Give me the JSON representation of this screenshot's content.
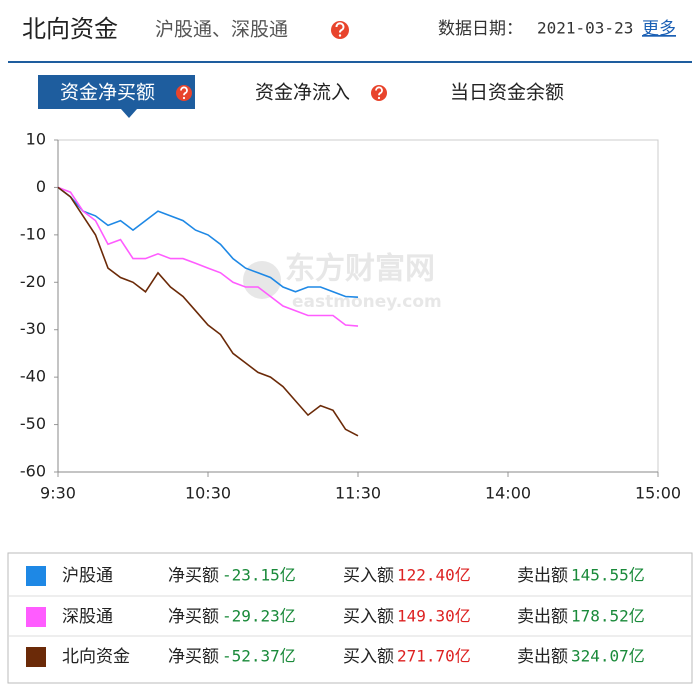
{
  "header": {
    "title": "北向资金",
    "subtitle": "沪股通、深股通",
    "date_label": "数据日期：",
    "date": "2021-03-23",
    "more_link": "更多"
  },
  "tabs": [
    "资金净买额",
    "资金净流入",
    "当日资金余额"
  ],
  "watermark": {
    "name": "东方财富网",
    "domain": "eastmoney.com"
  },
  "chart_data": {
    "type": "line",
    "x": [
      0,
      5,
      10,
      15,
      20,
      25,
      30,
      35,
      40,
      45,
      50,
      55,
      60,
      65,
      70,
      75,
      80,
      85,
      90,
      95,
      100,
      105,
      110,
      115,
      120
    ],
    "xlim": [
      0,
      240
    ],
    "xticks": [
      {
        "value": 0,
        "label": "9:30"
      },
      {
        "value": 60,
        "label": "10:30"
      },
      {
        "value": 120,
        "label": "11:30"
      },
      {
        "value": 180,
        "label": "14:00"
      },
      {
        "value": 240,
        "label": "15:00"
      }
    ],
    "ylim": [
      -60,
      10
    ],
    "yticks": [
      10,
      0,
      -10,
      -20,
      -30,
      -40,
      -50,
      -60
    ],
    "series": [
      {
        "name": "沪股通",
        "color": "#1e88e5",
        "values": [
          0,
          -2,
          -5,
          -6,
          -8,
          -7,
          -9,
          -7,
          -5,
          -6,
          -7,
          -9,
          -10,
          -12,
          -15,
          -17,
          -18,
          -19,
          -21,
          -22,
          -21,
          -21,
          -22,
          -23,
          -23.15
        ]
      },
      {
        "name": "深股通",
        "color": "#ff5cff",
        "values": [
          0,
          -1,
          -5,
          -7,
          -12,
          -11,
          -15,
          -15,
          -14,
          -15,
          -15,
          -16,
          -17,
          -18,
          -20,
          -21,
          -21,
          -23,
          -25,
          -26,
          -27,
          -27,
          -27,
          -29,
          -29.23
        ]
      },
      {
        "name": "北向资金",
        "color": "#6b2a08",
        "values": [
          0,
          -2,
          -6,
          -10,
          -17,
          -19,
          -20,
          -22,
          -18,
          -21,
          -23,
          -26,
          -29,
          -31,
          -35,
          -37,
          -39,
          -40,
          -42,
          -45,
          -48,
          -46,
          -47,
          -51,
          -52.37
        ]
      }
    ]
  },
  "summary": {
    "rows": [
      {
        "net_label": "净买额",
        "net": "-23.15亿",
        "buy_label": "买入额",
        "buy": "122.40亿",
        "sell_label": "卖出额",
        "sell": "145.55亿"
      },
      {
        "net_label": "净买额",
        "net": "-29.23亿",
        "buy_label": "买入额",
        "buy": "149.30亿",
        "sell_label": "卖出额",
        "sell": "178.52亿"
      },
      {
        "net_label": "净买额",
        "net": "-52.37亿",
        "buy_label": "买入额",
        "buy": "271.70亿",
        "sell_label": "卖出额",
        "sell": "324.07亿"
      }
    ]
  }
}
